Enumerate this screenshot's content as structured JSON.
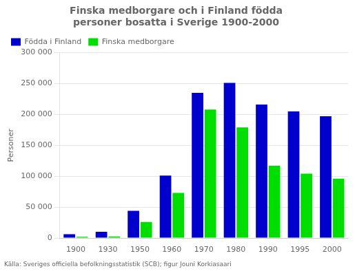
{
  "chart_data": {
    "type": "bar",
    "title": "Finska medborgare och i Finland födda\npersoner bosatta i Sverige 1900-2000",
    "ylabel": "Personer",
    "source": "Källa: Sveriges officiella befolkningsstatistik (SCB); figur Jouni Korkiasaari",
    "categories": [
      "1900",
      "1930",
      "1950",
      "1960",
      "1970",
      "1980",
      "1990",
      "1995",
      "2000"
    ],
    "series": [
      {
        "name": "Födda i Finland",
        "color": "#0000CC",
        "values": [
          6000,
          10000,
          44000,
          101000,
          235000,
          251000,
          216000,
          205000,
          197000
        ]
      },
      {
        "name": "Finska medborgare",
        "color": "#00DD00",
        "values": [
          2000,
          2500,
          26000,
          73000,
          208000,
          179000,
          117000,
          104000,
          96000
        ]
      }
    ],
    "ylim": [
      0,
      300000
    ],
    "yticks": [
      0,
      {
        "value": 50000,
        "label": "50 000"
      },
      {
        "value": 100000,
        "label": "100 000"
      },
      {
        "value": 150000,
        "label": "150 000"
      },
      {
        "value": 200000,
        "label": "200 000"
      },
      {
        "value": 250000,
        "label": "250 000"
      },
      {
        "value": 300000,
        "label": "300 000"
      }
    ],
    "grid": true,
    "legend": "upper left"
  }
}
